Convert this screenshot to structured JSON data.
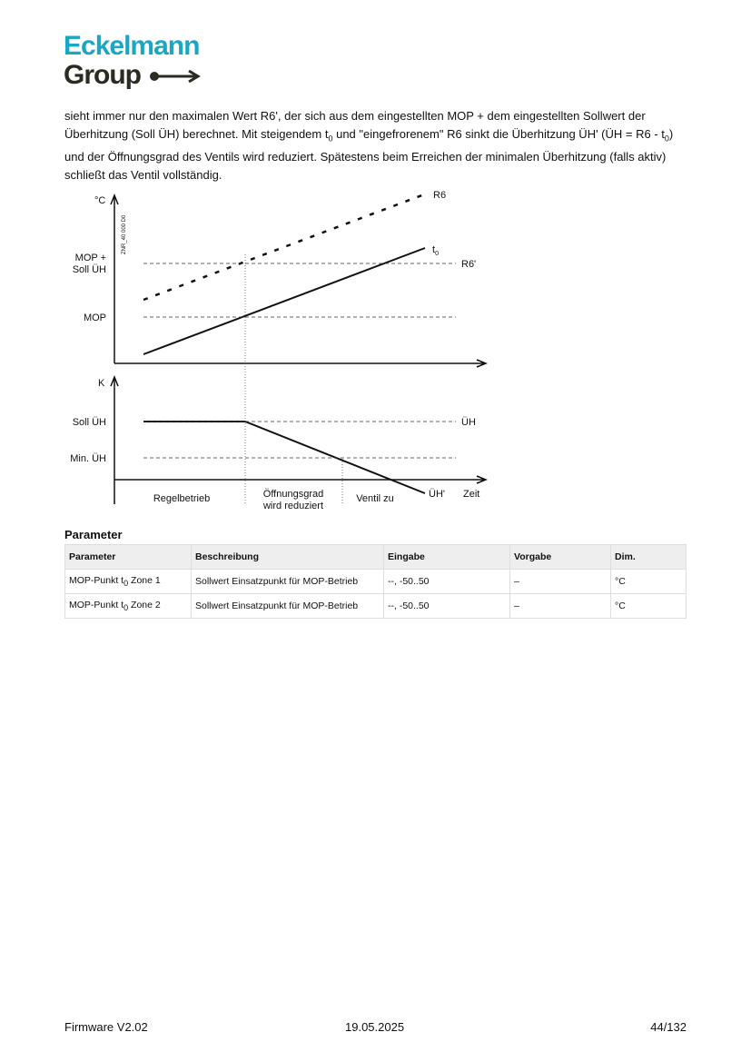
{
  "header": {
    "logo_top": "Eckelmann",
    "logo_bottom": "Group"
  },
  "paragraph": [
    "sieht immer nur den maximalen Wert R6', der sich aus dem eingestellten MOP + dem eingestellten Sollwert der Überhitzung (Soll ÜH) berechnet. Mit steigendem t",
    "0",
    " und \"eingefrorenem\" R6 sinkt die Überhitzung ÜH' (ÜH = R6 - t",
    "0",
    ") und der Öffnungsgrad des Ventils wird reduziert. Spätestens beim Erreichen der minimalen Überhitzung (falls aktiv) schließt das Ventil vollständig."
  ],
  "diagram": {
    "top_unit": "°C",
    "code": "ZNR_40 000 D0",
    "mop_soll_1": "MOP +",
    "mop_soll_2": "Soll ÜH",
    "mop": "MOP",
    "r6": "R6",
    "t0": "t",
    "t0_sub": "0",
    "r6_prime": "R6'",
    "bottom_unit": "K",
    "soll_uh": "Soll ÜH",
    "min_uh": "Min. ÜH",
    "uh": "ÜH",
    "uh_prime": "ÜH'",
    "time": "Zeit",
    "phase1": "Regelbetrieb",
    "phase2_1": "Öffnungsgrad",
    "phase2_2": "wird reduziert",
    "phase3": "Ventil zu"
  },
  "section_title": "Parameter",
  "table": {
    "header": [
      "Parameter",
      "Beschreibung",
      "Eingabe",
      "Vorgabe",
      "Dim."
    ],
    "rows": [
      [
        [
          "MOP-Punkt t",
          "0",
          " Zone 1"
        ],
        "Sollwert Einsatzpunkt für MOP-Betrieb",
        "--, -50..50",
        "–",
        "°C"
      ],
      [
        [
          "MOP-Punkt t",
          "0",
          " Zone 2"
        ],
        "Sollwert Einsatzpunkt für MOP-Betrieb",
        "--, -50..50",
        "–",
        "°C"
      ]
    ]
  },
  "footer": {
    "left": "Firmware V2.02",
    "center": "19.05.2025",
    "right": "44/132"
  }
}
